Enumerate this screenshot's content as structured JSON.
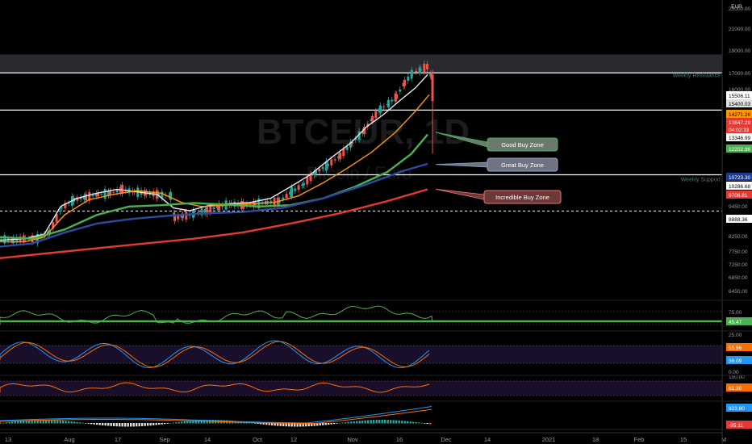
{
  "chart_data": [
    {
      "type": "candlestick",
      "symbol": "BTCEUR",
      "interval": "1D",
      "name": "Bitcoin / Euro",
      "currency": "EUR",
      "y_scale": "log",
      "ylim": [
        6000,
        25000
      ],
      "price_ticks": [
        "25000.00",
        "21000.00",
        "19000.00",
        "17000.00",
        "16000.00",
        "9450.00",
        "8250.00",
        "7750.00",
        "7250.00",
        "6850.00",
        "6450.00"
      ],
      "x_ticks": [
        "13",
        "Aug",
        "17",
        "Sep",
        "14",
        "Oct",
        "12",
        "Nov",
        "16",
        "Dec",
        "14",
        "2021",
        "18",
        "Feb",
        "15",
        "M"
      ],
      "hlines": [
        {
          "label": "Weekly Resistance",
          "price": 15506.11
        },
        {
          "label": "",
          "price": 13346.99
        },
        {
          "label": "Weekly Support",
          "price": 10286.68
        },
        {
          "label": "",
          "price": 8888.36,
          "style": "dashed"
        }
      ],
      "price_labels": [
        {
          "text": "15506.11",
          "color": "#ffffff",
          "text_color": "#000000",
          "price": 15506.11
        },
        {
          "text": "15400.03",
          "color": "#e0e0e0",
          "text_color": "#000000",
          "price": 15100
        },
        {
          "text": "14271.26",
          "color": "#ff9800",
          "text_color": "#000000",
          "price": 14271.26
        },
        {
          "text": "13847.29",
          "color": "#e53935",
          "text_color": "#ffffff",
          "price": 13847.29
        },
        {
          "text": "04:02:33",
          "color": "#e53935",
          "text_color": "#ffffff",
          "price": 13550
        },
        {
          "text": "13346.99",
          "color": "#ffffff",
          "text_color": "#000000",
          "price": 13346.99
        },
        {
          "text": "12202.96",
          "color": "#4caf50",
          "text_color": "#ffffff",
          "price": 12202.96
        },
        {
          "text": "10723.30",
          "color": "#1e3a8a",
          "text_color": "#ffffff",
          "price": 10723.3
        },
        {
          "text": "10286.68",
          "color": "#ffffff",
          "text_color": "#000000",
          "price": 10286.68
        },
        {
          "text": "9706.81",
          "color": "#e53935",
          "text_color": "#ffffff",
          "price": 9706.81
        },
        {
          "text": "8888.36",
          "color": "#ffffff",
          "text_color": "#000000",
          "price": 8888.36
        }
      ],
      "callouts": [
        {
          "label": "Good Buy Zone",
          "fill": "#6b7a6e",
          "border": "#4caf50",
          "price": 12202.96
        },
        {
          "label": "Great Buy Zone",
          "fill": "#6f7480",
          "border": "#90a4c8",
          "price": 10723.3
        },
        {
          "label": "Incredible Buy Zone",
          "fill": "#6d3838",
          "border": "#e57373",
          "price": 9706.81
        }
      ],
      "series": [
        {
          "name": "",
          "color": "#e8e8f0",
          "points": [
            [
              0,
              7900
            ],
            [
              30,
              7950
            ],
            [
              55,
              8100
            ],
            [
              75,
              9050
            ],
            [
              95,
              9350
            ],
            [
              120,
              9550
            ],
            [
              145,
              9700
            ],
            [
              170,
              9600
            ],
            [
              195,
              9500
            ],
            [
              215,
              9000
            ],
            [
              235,
              8900
            ],
            [
              260,
              9100
            ],
            [
              285,
              9150
            ],
            [
              310,
              9200
            ],
            [
              335,
              9350
            ],
            [
              360,
              9800
            ],
            [
              385,
              10300
            ],
            [
              410,
              11000
            ],
            [
              435,
              11700
            ],
            [
              455,
              12500
            ],
            [
              475,
              13100
            ],
            [
              495,
              13850
            ],
            [
              515,
              14600
            ],
            [
              530,
              15400
            ]
          ]
        },
        {
          "name": "",
          "color": "#ff9800",
          "points": [
            [
              0,
              7850
            ],
            [
              30,
              7850
            ],
            [
              55,
              8000
            ],
            [
              80,
              8750
            ],
            [
              110,
              9300
            ],
            [
              140,
              9500
            ],
            [
              170,
              9650
            ],
            [
              200,
              9550
            ],
            [
              225,
              9200
            ],
            [
              250,
              9050
            ],
            [
              280,
              9100
            ],
            [
              310,
              9150
            ],
            [
              340,
              9200
            ],
            [
              370,
              9450
            ],
            [
              400,
              9950
            ],
            [
              430,
              10550
            ],
            [
              460,
              11250
            ],
            [
              490,
              12200
            ],
            [
              515,
              13300
            ],
            [
              532,
              14200
            ]
          ]
        },
        {
          "name": "",
          "color": "#4caf50",
          "points": [
            [
              0,
              8000
            ],
            [
              40,
              7950
            ],
            [
              80,
              8250
            ],
            [
              120,
              8750
            ],
            [
              160,
              9050
            ],
            [
              200,
              9100
            ],
            [
              240,
              9180
            ],
            [
              280,
              9120
            ],
            [
              320,
              9050
            ],
            [
              360,
              9100
            ],
            [
              400,
              9350
            ],
            [
              440,
              9800
            ],
            [
              480,
              10400
            ],
            [
              510,
              11200
            ],
            [
              530,
              12100
            ]
          ]
        },
        {
          "name": "",
          "color": "#2d4a9e",
          "points": [
            [
              0,
              7700
            ],
            [
              40,
              7800
            ],
            [
              80,
              8150
            ],
            [
              120,
              8450
            ],
            [
              160,
              8600
            ],
            [
              200,
              8700
            ],
            [
              250,
              8800
            ],
            [
              300,
              8850
            ],
            [
              350,
              9000
            ],
            [
              400,
              9350
            ],
            [
              450,
              9850
            ],
            [
              500,
              10450
            ],
            [
              530,
              10750
            ]
          ]
        },
        {
          "name": "",
          "color": "#e53935",
          "points": [
            [
              0,
              7350
            ],
            [
              60,
              7500
            ],
            [
              120,
              7650
            ],
            [
              180,
              7800
            ],
            [
              240,
              7950
            ],
            [
              300,
              8150
            ],
            [
              360,
              8450
            ],
            [
              420,
              8800
            ],
            [
              480,
              9250
            ],
            [
              530,
              9700
            ]
          ]
        }
      ],
      "candles_outline": [
        [
          0,
          7950
        ],
        [
          15,
          7900
        ],
        [
          30,
          7950
        ],
        [
          45,
          7950
        ],
        [
          60,
          8150
        ],
        [
          75,
          9000
        ],
        [
          90,
          9300
        ],
        [
          105,
          9400
        ],
        [
          120,
          9500
        ],
        [
          135,
          9550
        ],
        [
          150,
          9700
        ],
        [
          165,
          9600
        ],
        [
          180,
          9550
        ],
        [
          195,
          9500
        ],
        [
          210,
          9450
        ],
        [
          215,
          8650
        ],
        [
          225,
          8700
        ],
        [
          240,
          8800
        ],
        [
          255,
          8900
        ],
        [
          270,
          9050
        ],
        [
          285,
          9150
        ],
        [
          300,
          9100
        ],
        [
          315,
          9150
        ],
        [
          330,
          9200
        ],
        [
          345,
          9250
        ],
        [
          360,
          9600
        ],
        [
          375,
          9900
        ],
        [
          390,
          10400
        ],
        [
          405,
          10700
        ],
        [
          420,
          11100
        ],
        [
          435,
          11700
        ],
        [
          450,
          12300
        ],
        [
          460,
          12900
        ],
        [
          470,
          13400
        ],
        [
          480,
          13700
        ],
        [
          490,
          14100
        ],
        [
          500,
          14900
        ],
        [
          510,
          15500
        ],
        [
          520,
          15700
        ],
        [
          528,
          15900
        ],
        [
          533,
          15300
        ],
        [
          536,
          13800
        ]
      ]
    },
    {
      "type": "line",
      "panel": "oscillator-1",
      "ticks": [
        "75.00",
        "25.00"
      ],
      "last_value_label": "45.47",
      "last_value_color": "#4caf50"
    },
    {
      "type": "line",
      "panel": "stochastic",
      "ticks": [
        "0.00"
      ],
      "value_labels": [
        {
          "text": "55.96",
          "color": "#ff6d00"
        },
        {
          "text": "38.09",
          "color": "#2196f3"
        }
      ]
    },
    {
      "type": "line",
      "panel": "oscillator-3",
      "ticks": [
        "100.00"
      ],
      "last_value_label": "61.30",
      "last_value_color": "#ff6d00"
    },
    {
      "type": "histogram",
      "panel": "macd",
      "value_labels": [
        {
          "text": "923.80",
          "color": "#2196f3"
        },
        {
          "text": "-95.11",
          "color": "#e53935"
        }
      ]
    }
  ],
  "axis_label_currency": "EUR"
}
